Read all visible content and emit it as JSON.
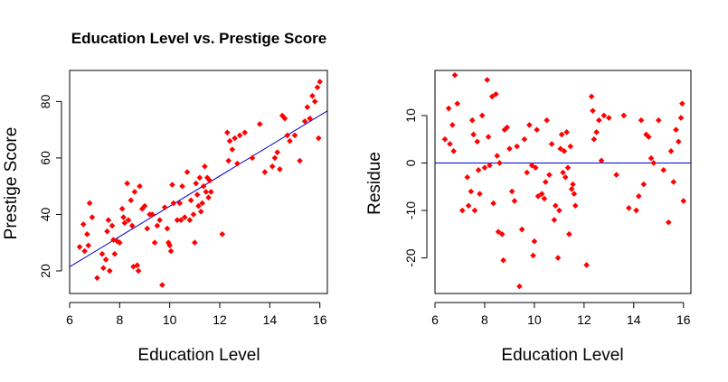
{
  "chart_data": [
    {
      "type": "scatter",
      "title": "Education Level vs. Prestige Score",
      "xlabel": "Education Level",
      "ylabel": "Prestige Score",
      "xlim": [
        6,
        16.3
      ],
      "ylim": [
        12,
        91
      ],
      "xticks": [
        6,
        8,
        10,
        12,
        14,
        16
      ],
      "yticks": [
        20,
        40,
        60,
        80
      ],
      "xtick_labels": [
        "6",
        "8",
        "10",
        "12",
        "14",
        "16"
      ],
      "ytick_labels": [
        "20",
        "40",
        "60",
        "80"
      ],
      "grid": false,
      "point_color": "#ff0000",
      "line_color": "#0000cc",
      "regression_line": {
        "intercept": -10.7,
        "slope": 5.36
      },
      "x": [
        6.4,
        6.55,
        6.6,
        6.7,
        6.75,
        6.8,
        6.9,
        7.1,
        7.3,
        7.35,
        7.45,
        7.5,
        7.55,
        7.6,
        7.7,
        7.75,
        7.8,
        7.9,
        8.0,
        8.1,
        8.15,
        8.2,
        8.3,
        8.35,
        8.45,
        8.5,
        8.55,
        8.6,
        8.7,
        8.75,
        8.8,
        8.9,
        9.0,
        9.1,
        9.2,
        9.3,
        9.4,
        9.5,
        9.6,
        9.7,
        9.8,
        9.9,
        9.95,
        10.0,
        10.05,
        10.1,
        10.15,
        10.3,
        10.4,
        10.45,
        10.5,
        10.6,
        10.7,
        10.8,
        10.85,
        10.95,
        11.0,
        11.05,
        11.1,
        11.15,
        11.2,
        11.25,
        11.3,
        11.35,
        11.4,
        11.45,
        11.5,
        11.55,
        11.6,
        11.65,
        12.1,
        12.3,
        12.35,
        12.4,
        12.5,
        12.6,
        12.7,
        12.8,
        13.0,
        13.3,
        13.6,
        13.8,
        14.1,
        14.2,
        14.3,
        14.4,
        14.5,
        14.6,
        14.7,
        14.8,
        15.0,
        15.2,
        15.4,
        15.5,
        15.6,
        15.7,
        15.8,
        15.9,
        15.95,
        16.0
      ],
      "y": [
        28.5,
        36.5,
        27.0,
        33.0,
        29.0,
        44.0,
        39.0,
        17.5,
        26.0,
        21.0,
        24.0,
        34.0,
        38.0,
        20.0,
        36.0,
        31.0,
        26.0,
        30.5,
        30.0,
        42.0,
        39.0,
        37.0,
        51.0,
        38.0,
        45.0,
        36.0,
        21.5,
        48.0,
        22.0,
        20.0,
        50.0,
        42.0,
        43.0,
        35.0,
        40.0,
        40.0,
        30.0,
        36.0,
        38.0,
        15.0,
        42.5,
        35.0,
        30.0,
        29.0,
        27.0,
        50.5,
        44.0,
        38.0,
        44.0,
        38.0,
        50.0,
        39.0,
        55.0,
        38.0,
        45.0,
        40.0,
        30.0,
        51.0,
        47.0,
        43.0,
        53.0,
        41.0,
        44.0,
        50.0,
        57.0,
        48.0,
        53.0,
        46.0,
        52.0,
        48.0,
        33.0,
        69.0,
        59.0,
        66.0,
        63.0,
        67.0,
        58.0,
        68.0,
        69.0,
        60.0,
        72.0,
        55.0,
        57.0,
        60.0,
        62.0,
        56.0,
        75.0,
        74.0,
        68.0,
        66.0,
        68.0,
        59.0,
        73.0,
        78.0,
        74.0,
        82.0,
        80.0,
        85.0,
        67.0,
        87.0
      ]
    },
    {
      "type": "scatter",
      "title": "",
      "xlabel": "Education Level",
      "ylabel": "Residue",
      "xlim": [
        6,
        16.3
      ],
      "ylim": [
        -27.5,
        19.5
      ],
      "xticks": [
        6,
        8,
        10,
        12,
        14,
        16
      ],
      "yticks": [
        -20,
        -10,
        0,
        10
      ],
      "xtick_labels": [
        "6",
        "8",
        "10",
        "12",
        "14",
        "16"
      ],
      "ytick_labels": [
        "-20",
        "-10",
        "0",
        "10"
      ],
      "grid": false,
      "point_color": "#ff0000",
      "line_color": "#0000cc",
      "hline": 0,
      "x": [
        6.4,
        6.55,
        6.6,
        6.7,
        6.75,
        6.8,
        6.9,
        7.1,
        7.3,
        7.35,
        7.45,
        7.5,
        7.55,
        7.6,
        7.7,
        7.75,
        7.8,
        7.9,
        8.0,
        8.1,
        8.15,
        8.2,
        8.3,
        8.35,
        8.45,
        8.5,
        8.55,
        8.6,
        8.7,
        8.75,
        8.8,
        8.9,
        9.0,
        9.1,
        9.2,
        9.3,
        9.4,
        9.5,
        9.6,
        9.7,
        9.8,
        9.9,
        9.95,
        10.0,
        10.05,
        10.1,
        10.15,
        10.3,
        10.4,
        10.45,
        10.5,
        10.6,
        10.7,
        10.8,
        10.85,
        10.95,
        11.0,
        11.05,
        11.1,
        11.15,
        11.2,
        11.25,
        11.3,
        11.35,
        11.4,
        11.45,
        11.5,
        11.55,
        11.6,
        11.65,
        12.1,
        12.3,
        12.35,
        12.4,
        12.5,
        12.6,
        12.7,
        12.8,
        13.0,
        13.3,
        13.6,
        13.8,
        14.1,
        14.2,
        14.3,
        14.4,
        14.5,
        14.6,
        14.7,
        14.8,
        15.0,
        15.2,
        15.4,
        15.5,
        15.6,
        15.7,
        15.8,
        15.9,
        15.95,
        16.0
      ],
      "y": [
        5.0,
        11.5,
        4.0,
        8.0,
        2.5,
        18.5,
        12.5,
        -10.0,
        -3.0,
        -9.0,
        -6.0,
        9.0,
        6.0,
        -10.0,
        4.5,
        -1.5,
        -6.5,
        10.0,
        -1.0,
        17.5,
        5.5,
        -0.5,
        14.0,
        -8.5,
        14.5,
        1.5,
        -14.5,
        0.0,
        -15.0,
        -20.5,
        7.0,
        7.5,
        3.0,
        -6.0,
        -8.0,
        3.5,
        -26.0,
        -14.0,
        5.0,
        -2.0,
        8.0,
        -0.5,
        -19.5,
        -16.5,
        -1.0,
        7.0,
        -7.0,
        -6.5,
        -7.5,
        -4.0,
        9.0,
        -2.5,
        4.0,
        -12.0,
        -9.0,
        -20.0,
        -10.0,
        3.0,
        6.0,
        -2.0,
        2.5,
        -3.0,
        6.5,
        -1.0,
        -15.0,
        3.5,
        -5.5,
        -4.5,
        -6.5,
        -9.0,
        -21.5,
        14.0,
        11.0,
        5.0,
        6.5,
        9.0,
        0.5,
        10.0,
        9.5,
        -2.5,
        10.0,
        -9.5,
        -10.0,
        -7.0,
        9.0,
        -4.5,
        6.0,
        5.5,
        1.0,
        0.0,
        9.0,
        -1.5,
        -12.5,
        2.5,
        -4.0,
        7.0,
        4.5,
        9.5,
        12.5,
        -8.0
      ]
    }
  ]
}
